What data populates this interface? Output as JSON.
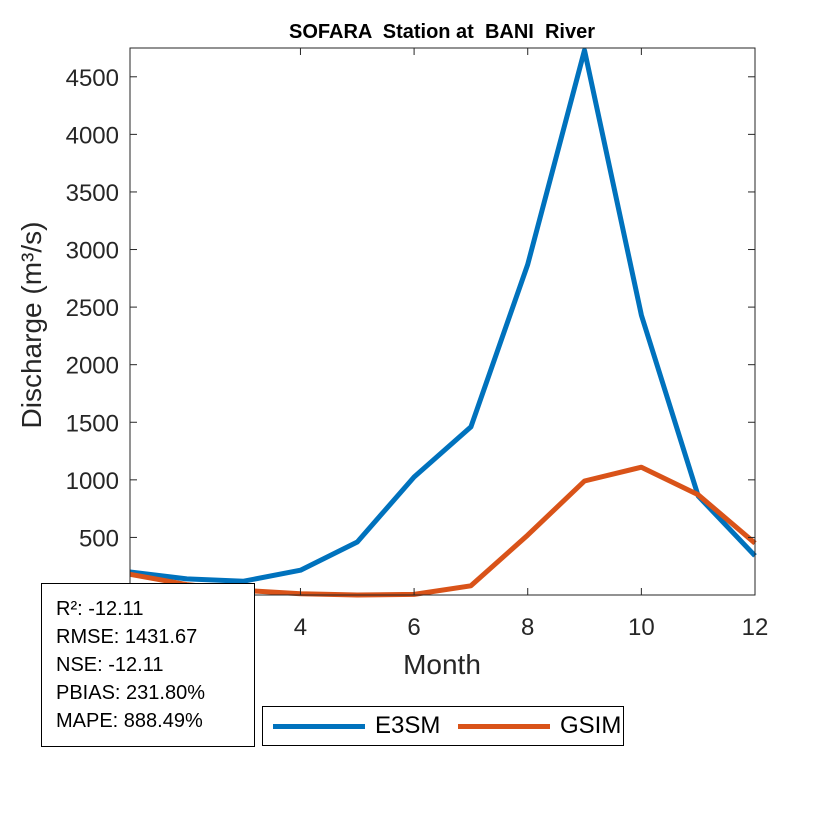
{
  "chart_data": {
    "type": "line",
    "title": "SOFARA  Station at  BANI  River",
    "xlabel": "Month",
    "ylabel": "Discharge (m³/s)",
    "xlim": [
      1,
      12
    ],
    "ylim": [
      0,
      4750
    ],
    "xticks": [
      4,
      6,
      8,
      10,
      12
    ],
    "yticks": [
      500,
      1000,
      1500,
      2000,
      2500,
      3000,
      3500,
      4000,
      4500
    ],
    "box": true,
    "grid": false,
    "legend_position": "bottom-outside",
    "x": [
      1,
      2,
      3,
      4,
      5,
      6,
      7,
      8,
      9,
      10,
      11,
      12
    ],
    "series": [
      {
        "name": "E3SM",
        "color": "#0072BD",
        "values": [
          200,
          140,
          120,
          215,
          460,
          1025,
          1460,
          2870,
          4730,
          2430,
          860,
          340
        ]
      },
      {
        "name": "GSIM",
        "color": "#D95319",
        "values": [
          180,
          90,
          40,
          10,
          0,
          5,
          80,
          520,
          990,
          1110,
          870,
          450
        ]
      }
    ]
  },
  "stats": {
    "r2": "R²: -12.11",
    "rmse": "RMSE: 1431.67",
    "nse": "NSE: -12.11",
    "pbias": "PBIAS: 231.80%",
    "mape": "MAPE: 888.49%"
  }
}
